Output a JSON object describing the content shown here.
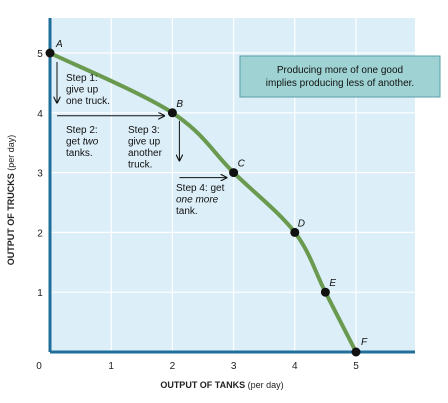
{
  "chart_data": {
    "type": "line",
    "title": "",
    "xlabel": "OUTPUT OF TANKS",
    "xlabel_unit": "(per day)",
    "ylabel": "OUTPUT OF TRUCKS",
    "ylabel_unit": "(per day)",
    "xlim": [
      0,
      5
    ],
    "ylim": [
      0,
      5
    ],
    "x_ticks": [
      0,
      1,
      2,
      3,
      4,
      5
    ],
    "y_ticks": [
      0,
      1,
      2,
      3,
      4,
      5
    ],
    "grid": true,
    "curve_color": "#6a9a4f",
    "background_color": "#dceef8",
    "axis_color": "#1f6f9a",
    "points": [
      {
        "label": "A",
        "x": 0,
        "y": 5
      },
      {
        "label": "B",
        "x": 2,
        "y": 4
      },
      {
        "label": "C",
        "x": 3,
        "y": 3
      },
      {
        "label": "D",
        "x": 4,
        "y": 2
      },
      {
        "label": "E",
        "x": 4.5,
        "y": 1
      },
      {
        "label": "F",
        "x": 5,
        "y": 0
      }
    ],
    "annotations": {
      "step1": [
        "Step 1:",
        "give up",
        "one truck."
      ],
      "step2": [
        "Step 2:",
        "get two",
        "tanks."
      ],
      "step2_italic_word": "two",
      "step3": [
        "Step 3:",
        "give up",
        "another",
        "truck."
      ],
      "step4": [
        "Step 4: get",
        "one more",
        "tank."
      ],
      "step4_italic_word": "one more"
    },
    "callout": [
      "Producing more of one good",
      "implies producing less of another."
    ]
  }
}
